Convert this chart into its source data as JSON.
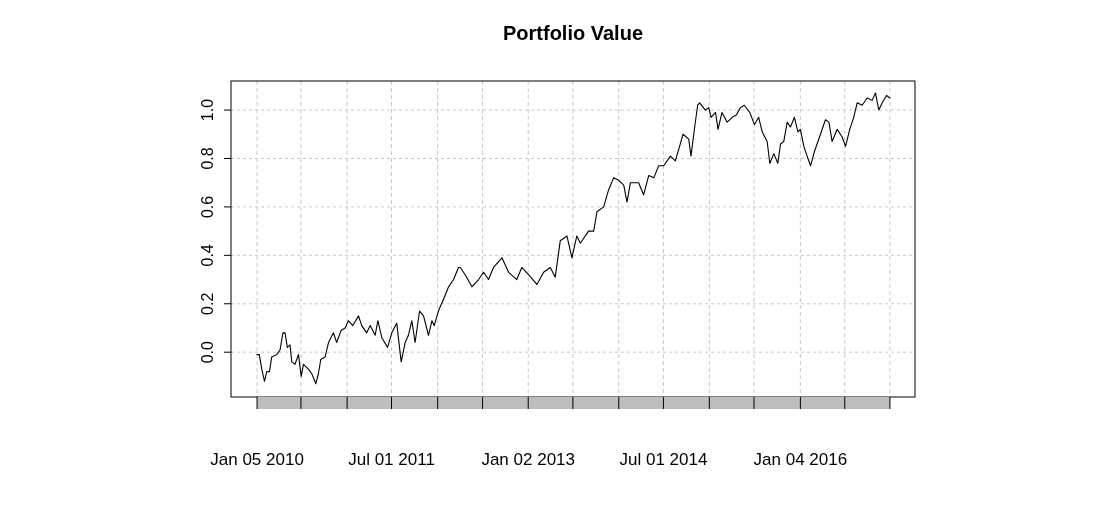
{
  "chart_data": {
    "type": "line",
    "title": "Portfolio Value",
    "x": [
      "2010-01-05",
      "2010-01-14",
      "2010-01-24",
      "2010-02-04",
      "2010-02-13",
      "2010-02-24",
      "2010-03-05",
      "2010-03-25",
      "2010-04-08",
      "2010-04-19",
      "2010-04-28",
      "2010-05-07",
      "2010-05-18",
      "2010-05-25",
      "2010-06-07",
      "2010-06-21",
      "2010-07-02",
      "2010-07-11",
      "2010-07-31",
      "2010-08-14",
      "2010-08-30",
      "2010-09-09",
      "2010-09-19",
      "2010-10-06",
      "2010-10-20",
      "2010-11-09",
      "2010-11-22",
      "2010-12-10",
      "2010-12-26",
      "2011-01-08",
      "2011-01-26",
      "2011-02-18",
      "2011-03-03",
      "2011-03-23",
      "2011-04-06",
      "2011-04-26",
      "2011-05-07",
      "2011-05-23",
      "2011-06-15",
      "2011-07-02",
      "2011-07-22",
      "2011-08-09",
      "2011-08-25",
      "2011-09-07",
      "2011-09-21",
      "2011-10-04",
      "2011-10-22",
      "2011-11-07",
      "2011-11-27",
      "2011-12-11",
      "2011-12-20",
      "2012-01-06",
      "2012-01-27",
      "2012-02-16",
      "2012-03-07",
      "2012-03-27",
      "2012-04-03",
      "2012-04-23",
      "2012-05-20",
      "2012-06-16",
      "2012-07-06",
      "2012-07-26",
      "2012-08-15",
      "2012-09-18",
      "2012-10-15",
      "2012-11-17",
      "2012-12-07",
      "2013-01-03",
      "2013-02-06",
      "2013-03-05",
      "2013-04-01",
      "2013-04-21",
      "2013-05-11",
      "2013-06-07",
      "2013-06-27",
      "2013-07-17",
      "2013-07-31",
      "2013-09-02",
      "2013-09-23",
      "2013-10-06",
      "2013-11-02",
      "2013-11-22",
      "2013-12-12",
      "2014-01-02",
      "2014-01-22",
      "2014-02-04",
      "2014-02-18",
      "2014-03-23",
      "2014-04-12",
      "2014-05-03",
      "2014-05-23",
      "2014-06-12",
      "2014-07-02",
      "2014-07-29",
      "2014-08-18",
      "2014-09-07",
      "2014-09-18",
      "2014-10-11",
      "2014-10-20",
      "2014-11-04",
      "2014-11-16",
      "2014-11-24",
      "2014-12-17",
      "2014-12-31",
      "2015-01-09",
      "2015-01-27",
      "2015-02-06",
      "2015-02-22",
      "2015-03-15",
      "2015-04-04",
      "2015-04-21",
      "2015-05-07",
      "2015-05-23",
      "2015-06-14",
      "2015-07-03",
      "2015-07-20",
      "2015-08-03",
      "2015-08-23",
      "2015-09-03",
      "2015-09-19",
      "2015-10-05",
      "2015-10-16",
      "2015-10-29",
      "2015-11-12",
      "2015-11-25",
      "2015-12-11",
      "2015-12-25",
      "2016-01-04",
      "2016-01-18",
      "2016-01-31",
      "2016-02-14",
      "2016-03-01",
      "2016-03-25",
      "2016-04-14",
      "2016-04-28",
      "2016-05-11",
      "2016-05-31",
      "2016-06-20",
      "2016-07-04",
      "2016-07-21",
      "2016-08-06",
      "2016-08-20",
      "2016-09-09",
      "2016-09-29",
      "2016-10-19",
      "2016-11-02",
      "2016-11-15",
      "2016-11-29",
      "2016-12-16",
      "2016-12-30"
    ],
    "series": [
      {
        "color": "#000000",
        "values": [
          -0.01,
          -0.01,
          -0.07,
          -0.12,
          -0.08,
          -0.08,
          -0.02,
          -0.01,
          0.01,
          0.08,
          0.08,
          0.02,
          0.03,
          -0.04,
          -0.05,
          -0.01,
          -0.1,
          -0.05,
          -0.07,
          -0.09,
          -0.13,
          -0.09,
          -0.03,
          -0.02,
          0.04,
          0.08,
          0.04,
          0.09,
          0.1,
          0.13,
          0.11,
          0.15,
          0.11,
          0.08,
          0.11,
          0.07,
          0.13,
          0.06,
          0.02,
          0.08,
          0.12,
          -0.04,
          0.04,
          0.07,
          0.13,
          0.04,
          0.17,
          0.15,
          0.07,
          0.13,
          0.11,
          0.17,
          0.22,
          0.27,
          0.3,
          0.35,
          0.35,
          0.32,
          0.27,
          0.3,
          0.33,
          0.3,
          0.35,
          0.39,
          0.33,
          0.3,
          0.35,
          0.32,
          0.28,
          0.33,
          0.35,
          0.31,
          0.46,
          0.48,
          0.39,
          0.48,
          0.45,
          0.5,
          0.5,
          0.58,
          0.6,
          0.67,
          0.72,
          0.71,
          0.69,
          0.62,
          0.7,
          0.7,
          0.65,
          0.73,
          0.72,
          0.77,
          0.77,
          0.81,
          0.79,
          0.86,
          0.9,
          0.88,
          0.81,
          0.93,
          1.02,
          1.03,
          1.0,
          1.01,
          0.97,
          0.99,
          0.92,
          0.99,
          0.95,
          0.97,
          0.98,
          1.01,
          1.02,
          0.99,
          0.94,
          0.97,
          0.91,
          0.87,
          0.78,
          0.82,
          0.78,
          0.86,
          0.87,
          0.95,
          0.93,
          0.97,
          0.91,
          0.92,
          0.85,
          0.81,
          0.77,
          0.83,
          0.9,
          0.96,
          0.95,
          0.87,
          0.92,
          0.89,
          0.85,
          0.92,
          0.97,
          1.03,
          1.02,
          1.05,
          1.04,
          1.07,
          1.0,
          1.03,
          1.06,
          1.05
        ]
      }
    ],
    "xlim": [
      "2009-09-22",
      "2017-04-10"
    ],
    "xticks": [
      {
        "value": "2010-01-05",
        "label": "Jan 05 2010"
      },
      {
        "value": "2010-07-01",
        "label": null
      },
      {
        "value": "2011-01-03",
        "label": null
      },
      {
        "value": "2011-07-01",
        "label": "Jul 01 2011"
      },
      {
        "value": "2012-01-03",
        "label": null
      },
      {
        "value": "2012-07-02",
        "label": null
      },
      {
        "value": "2013-01-02",
        "label": "Jan 02 2013"
      },
      {
        "value": "2013-07-01",
        "label": null
      },
      {
        "value": "2014-01-02",
        "label": null
      },
      {
        "value": "2014-07-01",
        "label": "Jul 01 2014"
      },
      {
        "value": "2015-01-02",
        "label": null
      },
      {
        "value": "2015-07-01",
        "label": null
      },
      {
        "value": "2016-01-04",
        "label": "Jan 04 2016"
      },
      {
        "value": "2016-07-01",
        "label": null
      },
      {
        "value": "2016-12-30",
        "label": null
      }
    ],
    "ylim": [
      -0.185,
      1.12
    ],
    "yticks": [
      {
        "value": 0,
        "label": "0.0"
      },
      {
        "value": 0.2,
        "label": "0.2"
      },
      {
        "value": 0.4,
        "label": "0.4"
      },
      {
        "value": 0.6,
        "label": "0.6"
      },
      {
        "value": 0.8,
        "label": "0.8"
      },
      {
        "value": 1,
        "label": "1.0"
      }
    ],
    "grid": true,
    "line_style": "solid",
    "marker": "none"
  }
}
